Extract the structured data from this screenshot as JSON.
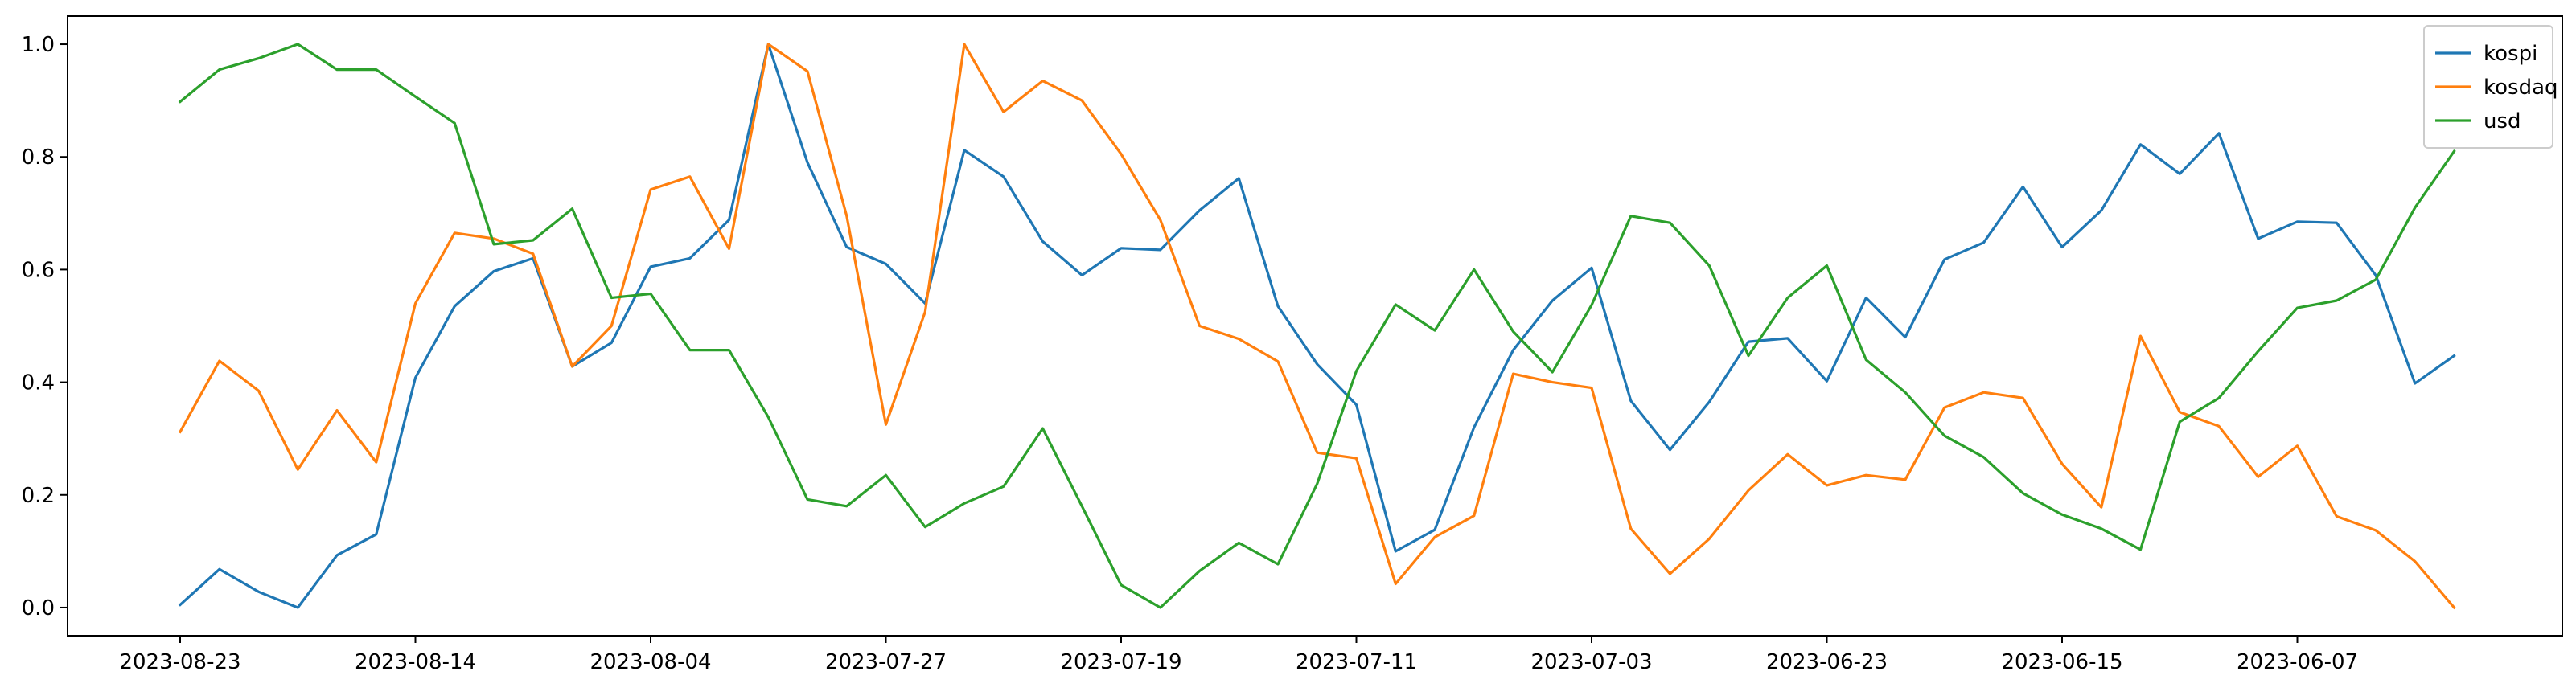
{
  "chart_data": {
    "type": "line",
    "title": "",
    "xlabel": "",
    "ylabel": "",
    "ylim": [
      -0.05,
      1.05
    ],
    "yticks": [
      0.0,
      0.2,
      0.4,
      0.6,
      0.8,
      1.0
    ],
    "ytick_labels": [
      "0.0",
      "0.2",
      "0.4",
      "0.6",
      "0.8",
      "1.0"
    ],
    "grid": false,
    "legend": "top-right",
    "x_tick_labels": [
      {
        "index": 0,
        "label": "2023-08-23"
      },
      {
        "index": 6,
        "label": "2023-08-14"
      },
      {
        "index": 12,
        "label": "2023-08-04"
      },
      {
        "index": 18,
        "label": "2023-07-27"
      },
      {
        "index": 24,
        "label": "2023-07-19"
      },
      {
        "index": 30,
        "label": "2023-07-11"
      },
      {
        "index": 36,
        "label": "2023-07-03"
      },
      {
        "index": 42,
        "label": "2023-06-23"
      },
      {
        "index": 48,
        "label": "2023-06-15"
      },
      {
        "index": 54,
        "label": "2023-06-07"
      }
    ],
    "n_points": 59,
    "series": [
      {
        "name": "kospi",
        "color": "#1f77b4",
        "values": [
          0.005,
          0.068,
          0.028,
          0.0,
          0.093,
          0.13,
          0.408,
          0.535,
          0.597,
          0.62,
          0.428,
          0.47,
          0.605,
          0.62,
          0.688,
          1.0,
          0.79,
          0.64,
          0.61,
          0.54,
          0.812,
          0.765,
          0.65,
          0.59,
          0.638,
          0.635,
          0.705,
          0.762,
          0.535,
          0.432,
          0.36,
          0.1,
          0.138,
          0.32,
          0.457,
          0.545,
          0.603,
          0.367,
          0.28,
          0.365,
          0.472,
          0.478,
          0.402,
          0.55,
          0.48,
          0.618,
          0.648,
          0.747,
          0.64,
          0.705,
          0.822,
          0.77,
          0.842,
          0.655,
          0.685,
          0.683,
          0.59,
          0.398,
          0.447
        ]
      },
      {
        "name": "kosdaq",
        "color": "#ff7f0e",
        "values": [
          0.312,
          0.438,
          0.385,
          0.245,
          0.35,
          0.258,
          0.54,
          0.665,
          0.655,
          0.628,
          0.428,
          0.5,
          0.742,
          0.765,
          0.637,
          1.0,
          0.952,
          0.695,
          0.325,
          0.525,
          1.0,
          0.88,
          0.935,
          0.9,
          0.805,
          0.688,
          0.5,
          0.477,
          0.437,
          0.275,
          0.265,
          0.042,
          0.125,
          0.163,
          0.415,
          0.4,
          0.39,
          0.14,
          0.06,
          0.122,
          0.208,
          0.272,
          0.217,
          0.235,
          0.227,
          0.355,
          0.382,
          0.372,
          0.255,
          0.178,
          0.482,
          0.347,
          0.322,
          0.232,
          0.287,
          0.162,
          0.137,
          0.082,
          0.0
        ]
      },
      {
        "name": "usd",
        "color": "#2ca02c",
        "values": [
          0.898,
          0.955,
          0.975,
          1.0,
          0.955,
          0.955,
          0.907,
          0.86,
          0.645,
          0.652,
          0.708,
          0.55,
          0.557,
          0.457,
          0.457,
          0.338,
          0.192,
          0.18,
          0.235,
          0.143,
          0.185,
          0.215,
          0.318,
          0.18,
          0.04,
          0.0,
          0.065,
          0.115,
          0.077,
          0.22,
          0.42,
          0.538,
          0.492,
          0.6,
          0.49,
          0.418,
          0.537,
          0.695,
          0.683,
          0.607,
          0.447,
          0.55,
          0.607,
          0.44,
          0.382,
          0.305,
          0.267,
          0.203,
          0.165,
          0.14,
          0.103,
          0.33,
          0.372,
          0.455,
          0.532,
          0.545,
          0.582,
          0.71,
          0.81
        ]
      }
    ]
  }
}
